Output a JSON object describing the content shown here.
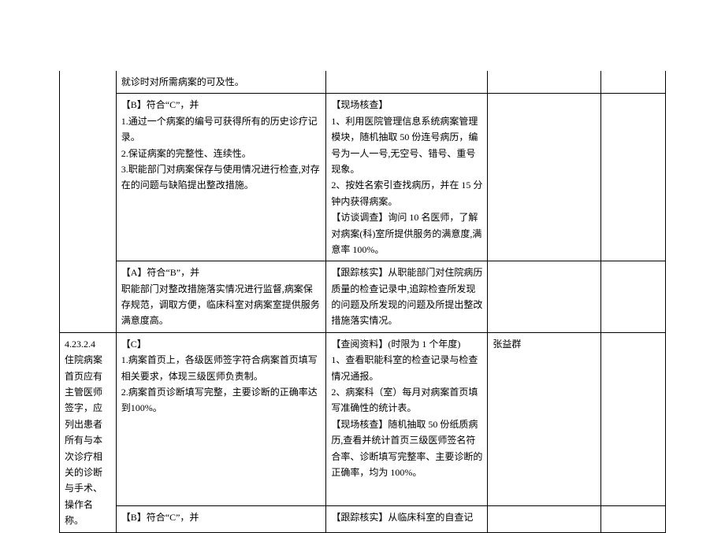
{
  "rows": {
    "r0": {
      "c2": "就诊时对所需病案的可及性。"
    },
    "r1": {
      "c2": "【B】符合“C”，并\n1.通过一个病案的编号可获得所有的历史诊疗记录。\n2.保证病案的完整性、连续性。\n3.职能部门对病案保存与使用情况进行检查,对存在的问题与缺陷提出整改措施。",
      "c3": "【现场核查】\n1、利用医院管理信息系统病案管理模块，随机抽取 50 份连号病历，编号为一人一号,无空号、错号、重号现象。\n2、按姓名索引查找病历，并在 15 分钟内获得病案。\n【访谈调查】询问 10 名医师，了解对病案(科)室所提供服务的满意度,满意率 100%。"
    },
    "r2": {
      "c2": "【A】符合“B”，并\n职能部门对整改措施落实情况进行监督,病案保存规范，调取方便，临床科室对病案室提供服务满意度高。",
      "c3": "【跟踪核实】从职能部门对住院病历质量的检查记录中,追踪检查所发现的问题及所发现的问题及所提出整改措施落实情况。"
    },
    "r3": {
      "c1": "4.23.2.4\n住院病案首页应有主管医师签字，应列出患者所有与本次诊疗相关的诊断与手术、操作名称。",
      "c2": "【C】\n1.病案首页上，各级医师签字符合病案首页填写相关要求，体现三级医师负责制。\n2.病案首页诊断填写完整，主要诊断的正确率达到100%。",
      "c3": "【查阅资料】(时限为 1 个年度)\n1、查看职能科室的检查记录与检查情况通报。\n2、病案科（室）每月对病案首页填写准确性的统计表。\n【现场核查】随机抽取 50 份纸质病历,查看并统计首页三级医师签名符合率、诊断填写完整率、主要诊断的正确率，均为 100%。",
      "c4": "张益群"
    },
    "r4": {
      "c2": "【B】符合“C”，并",
      "c3": "【跟踪核实】从临床科室的自查记"
    }
  }
}
